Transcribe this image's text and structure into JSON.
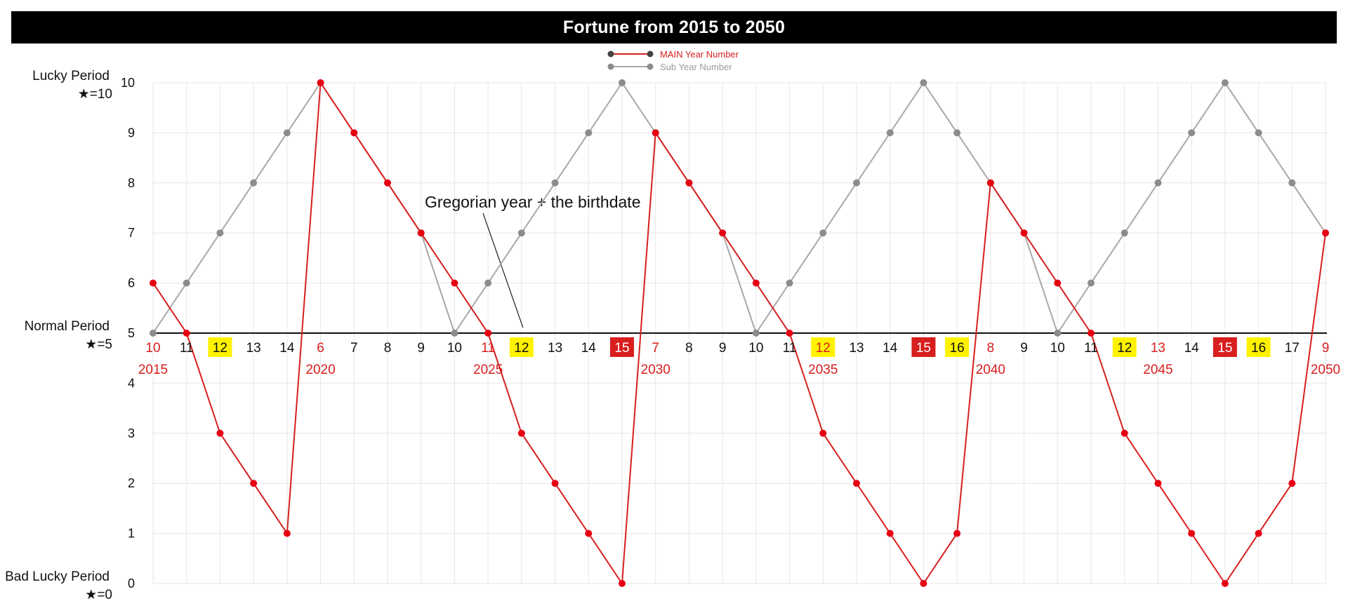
{
  "title": "Fortune from 2015 to 2050",
  "legend": {
    "main_label": "MAIN Year Number",
    "sub_label": "Sub Year Number"
  },
  "colors": {
    "main_line": "#d81e1e",
    "main_point": "#e60012",
    "sub_line": "#a8a8a8",
    "sub_point": "#8c8c8c",
    "highlight_yellow": "#fff200",
    "highlight_red": "#d81e1e",
    "grid": "#e6e6e6"
  },
  "y_axis": {
    "ticks": [
      "0",
      "1",
      "2",
      "3",
      "4",
      "5",
      "6",
      "7",
      "8",
      "9",
      "10"
    ],
    "period_labels": [
      {
        "y": 10,
        "line1": "Lucky Period",
        "line2": "★=10"
      },
      {
        "y": 5,
        "line1": "Normal Period",
        "line2": "★=5"
      },
      {
        "y": 0,
        "line1": "Bad Lucky Period",
        "line2": "★=0"
      }
    ]
  },
  "annotation": {
    "text": "Gregorian year + the birthdate",
    "target_x": 2026,
    "target_y": 5
  },
  "year_labels": [
    {
      "x": 2015,
      "text": "2015"
    },
    {
      "x": 2020,
      "text": "2020"
    },
    {
      "x": 2025,
      "text": "2025"
    },
    {
      "x": 2030,
      "text": "2030"
    },
    {
      "x": 2035,
      "text": "2035"
    },
    {
      "x": 2040,
      "text": "2040"
    },
    {
      "x": 2045,
      "text": "2045"
    },
    {
      "x": 2050,
      "text": "2050"
    }
  ],
  "year_numbers": [
    {
      "x": 2015,
      "text": "10",
      "style": "red"
    },
    {
      "x": 2016,
      "text": "11",
      "style": "plain"
    },
    {
      "x": 2017,
      "text": "12",
      "style": "yellow"
    },
    {
      "x": 2018,
      "text": "13",
      "style": "plain"
    },
    {
      "x": 2019,
      "text": "14",
      "style": "plain"
    },
    {
      "x": 2020,
      "text": "6",
      "style": "red"
    },
    {
      "x": 2021,
      "text": "7",
      "style": "plain"
    },
    {
      "x": 2022,
      "text": "8",
      "style": "plain"
    },
    {
      "x": 2023,
      "text": "9",
      "style": "plain"
    },
    {
      "x": 2024,
      "text": "10",
      "style": "plain"
    },
    {
      "x": 2025,
      "text": "11",
      "style": "red"
    },
    {
      "x": 2026,
      "text": "12",
      "style": "yellow"
    },
    {
      "x": 2027,
      "text": "13",
      "style": "plain"
    },
    {
      "x": 2028,
      "text": "14",
      "style": "plain"
    },
    {
      "x": 2029,
      "text": "15",
      "style": "redbox"
    },
    {
      "x": 2030,
      "text": "7",
      "style": "red"
    },
    {
      "x": 2031,
      "text": "8",
      "style": "plain"
    },
    {
      "x": 2032,
      "text": "9",
      "style": "plain"
    },
    {
      "x": 2033,
      "text": "10",
      "style": "plain"
    },
    {
      "x": 2034,
      "text": "11",
      "style": "plain"
    },
    {
      "x": 2035,
      "text": "12",
      "style": "yellow-red"
    },
    {
      "x": 2036,
      "text": "13",
      "style": "plain"
    },
    {
      "x": 2037,
      "text": "14",
      "style": "plain"
    },
    {
      "x": 2038,
      "text": "15",
      "style": "redbox"
    },
    {
      "x": 2039,
      "text": "16",
      "style": "yellow"
    },
    {
      "x": 2040,
      "text": "8",
      "style": "red"
    },
    {
      "x": 2041,
      "text": "9",
      "style": "plain"
    },
    {
      "x": 2042,
      "text": "10",
      "style": "plain"
    },
    {
      "x": 2043,
      "text": "11",
      "style": "plain"
    },
    {
      "x": 2044,
      "text": "12",
      "style": "yellow"
    },
    {
      "x": 2045,
      "text": "13",
      "style": "red"
    },
    {
      "x": 2046,
      "text": "14",
      "style": "plain"
    },
    {
      "x": 2047,
      "text": "15",
      "style": "redbox"
    },
    {
      "x": 2048,
      "text": "16",
      "style": "yellow"
    },
    {
      "x": 2049,
      "text": "17",
      "style": "plain"
    },
    {
      "x": 2050,
      "text": "9",
      "style": "red"
    }
  ],
  "chart_data": {
    "type": "line",
    "title": "Fortune from 2015 to 2050",
    "x": [
      2015,
      2016,
      2017,
      2018,
      2019,
      2020,
      2021,
      2022,
      2023,
      2024,
      2025,
      2026,
      2027,
      2028,
      2029,
      2030,
      2031,
      2032,
      2033,
      2034,
      2035,
      2036,
      2037,
      2038,
      2039,
      2040,
      2041,
      2042,
      2043,
      2044,
      2045,
      2046,
      2047,
      2048,
      2049,
      2050
    ],
    "xlim": [
      2015,
      2050
    ],
    "ylim": [
      0,
      10
    ],
    "grid": true,
    "legend_position": "top-center",
    "series": [
      {
        "name": "MAIN Year Number",
        "values": [
          6,
          5,
          3,
          2,
          1,
          10,
          9,
          8,
          7,
          6,
          5,
          3,
          2,
          1,
          0,
          9,
          8,
          7,
          6,
          5,
          3,
          2,
          1,
          0,
          1,
          8,
          7,
          6,
          5,
          3,
          2,
          1,
          0,
          1,
          2,
          7
        ]
      },
      {
        "name": "Sub Year Number",
        "values": [
          5,
          6,
          7,
          8,
          9,
          10,
          9,
          8,
          7,
          5,
          6,
          7,
          8,
          9,
          10,
          9,
          8,
          7,
          5,
          6,
          7,
          8,
          9,
          10,
          9,
          8,
          7,
          5,
          6,
          7,
          8,
          9,
          10,
          9,
          8,
          7
        ]
      }
    ]
  }
}
